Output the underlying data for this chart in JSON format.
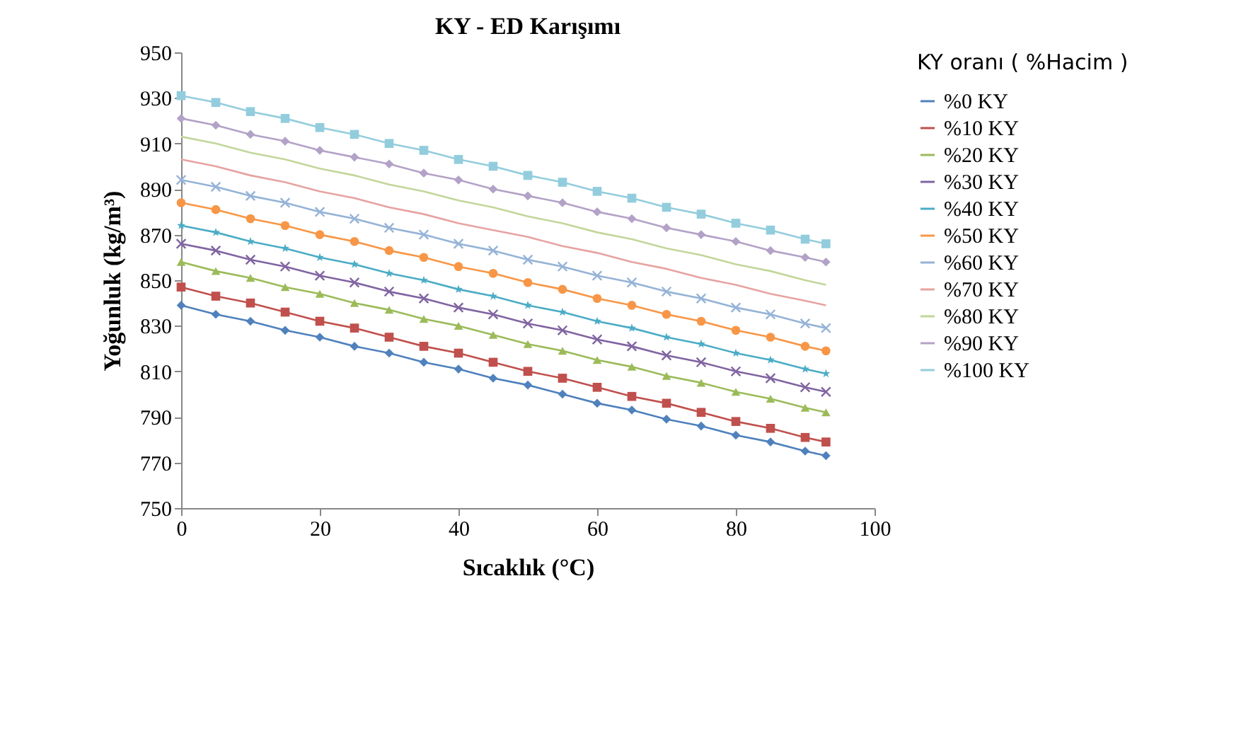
{
  "chart_data": {
    "type": "line",
    "title": "KY - ED Karışımı",
    "xlabel": "Sıcaklık (°C)",
    "ylabel": "Yoğunluk (kg/m³)",
    "legend_title": "KY oranı ( %Hacim )",
    "legend": "right",
    "x": [
      0,
      5,
      10,
      15,
      20,
      25,
      30,
      35,
      40,
      45,
      50,
      55,
      60,
      65,
      70,
      75,
      80,
      85,
      90,
      93
    ],
    "xlim": [
      0,
      100
    ],
    "xticks": [
      0,
      20,
      40,
      60,
      80,
      100
    ],
    "ylim": [
      750,
      950
    ],
    "yticks": [
      750,
      770,
      790,
      810,
      830,
      850,
      870,
      890,
      910,
      930,
      950
    ],
    "grid": false,
    "series": [
      {
        "name": "%0 KY",
        "color": "#4f81bd",
        "marker": "diamond",
        "values": [
          839,
          835,
          832,
          828,
          825,
          821,
          818,
          814,
          811,
          807,
          804,
          800,
          796,
          793,
          789,
          786,
          782,
          779,
          775,
          773
        ]
      },
      {
        "name": "%10 KY",
        "color": "#c0504d",
        "marker": "square",
        "values": [
          847,
          843,
          840,
          836,
          832,
          829,
          825,
          821,
          818,
          814,
          810,
          807,
          803,
          799,
          796,
          792,
          788,
          785,
          781,
          779
        ]
      },
      {
        "name": "%20 KY",
        "color": "#9bbb59",
        "marker": "triangle",
        "values": [
          858,
          854,
          851,
          847,
          844,
          840,
          837,
          833,
          830,
          826,
          822,
          819,
          815,
          812,
          808,
          805,
          801,
          798,
          794,
          792
        ]
      },
      {
        "name": "%30 KY",
        "color": "#8064a2",
        "marker": "cross",
        "values": [
          866,
          863,
          859,
          856,
          852,
          849,
          845,
          842,
          838,
          835,
          831,
          828,
          824,
          821,
          817,
          814,
          810,
          807,
          803,
          801
        ]
      },
      {
        "name": "%40 KY",
        "color": "#4bacc6",
        "marker": "star",
        "values": [
          874,
          871,
          867,
          864,
          860,
          857,
          853,
          850,
          846,
          843,
          839,
          836,
          832,
          829,
          825,
          822,
          818,
          815,
          811,
          809
        ]
      },
      {
        "name": "%50 KY",
        "color": "#f79646",
        "marker": "circle",
        "values": [
          884,
          881,
          877,
          874,
          870,
          867,
          863,
          860,
          856,
          853,
          849,
          846,
          842,
          839,
          835,
          832,
          828,
          825,
          821,
          819
        ]
      },
      {
        "name": "%60 KY",
        "color": "#95b3d7",
        "marker": "cross",
        "values": [
          894,
          891,
          887,
          884,
          880,
          877,
          873,
          870,
          866,
          863,
          859,
          856,
          852,
          849,
          845,
          842,
          838,
          835,
          831,
          829
        ]
      },
      {
        "name": "%70 KY",
        "color": "#e6a3a1",
        "marker": "none",
        "values": [
          903,
          900,
          896,
          893,
          889,
          886,
          882,
          879,
          875,
          872,
          869,
          865,
          862,
          858,
          855,
          851,
          848,
          844,
          841,
          839
        ]
      },
      {
        "name": "%80 KY",
        "color": "#c3d69b",
        "marker": "none",
        "values": [
          913,
          910,
          906,
          903,
          899,
          896,
          892,
          889,
          885,
          882,
          878,
          875,
          871,
          868,
          864,
          861,
          857,
          854,
          850,
          848
        ]
      },
      {
        "name": "%90 KY",
        "color": "#b3a2c7",
        "marker": "diamond",
        "values": [
          921,
          918,
          914,
          911,
          907,
          904,
          901,
          897,
          894,
          890,
          887,
          884,
          880,
          877,
          873,
          870,
          867,
          863,
          860,
          858
        ]
      },
      {
        "name": "%100 KY",
        "color": "#93cddd",
        "marker": "square",
        "values": [
          931,
          928,
          924,
          921,
          917,
          914,
          910,
          907,
          903,
          900,
          896,
          893,
          889,
          886,
          882,
          879,
          875,
          872,
          868,
          866
        ]
      }
    ]
  }
}
